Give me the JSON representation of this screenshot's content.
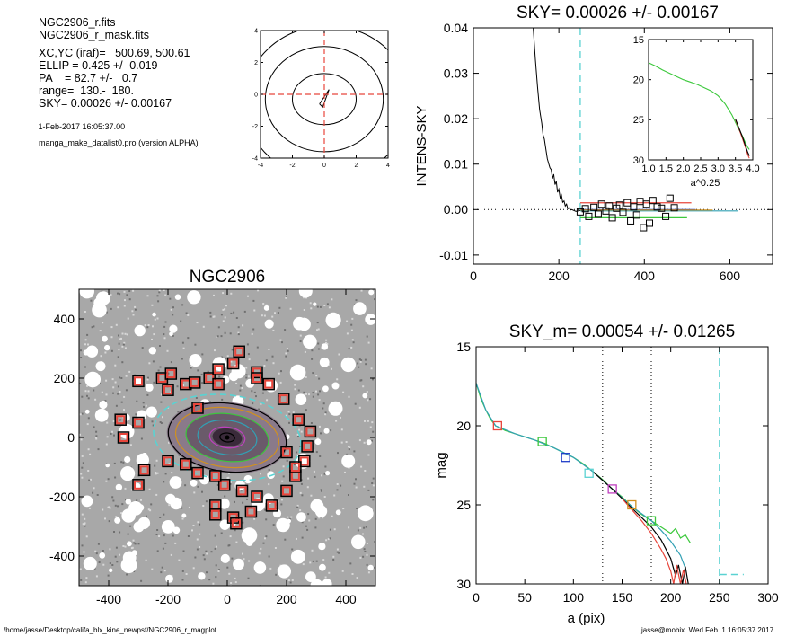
{
  "info": {
    "lines": [
      "NGC2906_r.fits",
      "NGC2906_r_mask.fits",
      "XC,YC (iraf)=   500.69, 500.61",
      "ELLIP = 0.425 +/- 0.019",
      "PA    = 82.7 +/-   0.7",
      "range=  130.-  180.",
      "SKY= 0.00026 +/- 0.00167"
    ],
    "date_line": " 1-Feb-2017 16:05:37.00",
    "program_line": "manga_make_datalist0.pro (version ALPHA)"
  },
  "footer": {
    "left": "/home/jasse/Desktop/califa_blx_kine_newpsf/NGC2906_r_magplot",
    "right": "jasse@mobix  Wed Feb  1 16:05:37 2017"
  },
  "colors": {
    "red": "#e8463c",
    "green": "#3cc83c",
    "cyan": "#5ad2d2",
    "blue": "#1e3cc8",
    "magenta": "#c040c0",
    "teal": "#32a0b4",
    "orange": "#d09020",
    "gray": "#9a9a9a"
  },
  "chart_data": [
    {
      "id": "contour",
      "type": "contour",
      "xlim": [
        -4,
        4
      ],
      "ylim": [
        -4,
        4
      ],
      "xticks": [
        "-4",
        "-2",
        "0",
        "2",
        "4"
      ],
      "yticks": [
        "-4",
        "-2",
        "0",
        "2",
        "4"
      ],
      "crosshair": {
        "x": 0,
        "y": 0,
        "color": "red"
      },
      "levels": [
        {
          "rx": 2.0,
          "ry": 1.6,
          "cx": 0,
          "cy": -0.3
        },
        {
          "rx": 3.7,
          "ry": 3.3,
          "cx": 0,
          "cy": -0.3
        },
        {
          "rx": 5.2,
          "ry": 4.8,
          "cx": 0.2,
          "cy": -0.5
        }
      ]
    },
    {
      "id": "sky",
      "type": "line",
      "title": "SKY= 0.00026 +/- 0.00167",
      "xlabel": "",
      "ylabel": "INTENS-SKY",
      "xlim": [
        0,
        700
      ],
      "ylim": [
        -0.012,
        0.04
      ],
      "xticks": [
        0,
        200,
        400,
        600
      ],
      "yticks": [
        -0.01,
        0.0,
        0.01,
        0.02,
        0.03,
        0.04
      ],
      "ytick_labels": [
        "-0.01",
        "0.00",
        "0.01",
        "0.02",
        "0.03",
        "0.04"
      ],
      "zero_line": 0,
      "vline": {
        "x": 250,
        "color": "cyan"
      },
      "profile": {
        "x": [
          140,
          145,
          150,
          155,
          160,
          163,
          166,
          170,
          173,
          176,
          179,
          182,
          185,
          188,
          191,
          194,
          197,
          200,
          203,
          206,
          209,
          212,
          215,
          218,
          221,
          224,
          227,
          230,
          240,
          250,
          260
        ],
        "y": [
          0.04,
          0.033,
          0.027,
          0.022,
          0.019,
          0.0165,
          0.0155,
          0.013,
          0.0112,
          0.0102,
          0.0092,
          0.0088,
          0.0068,
          0.0078,
          0.0055,
          0.0062,
          0.0038,
          0.0045,
          0.0026,
          0.0032,
          0.0016,
          0.0019,
          0.0008,
          0.0012,
          0.0002,
          0.0004,
          -0.0001,
          0.0,
          -0.0004,
          -0.0002,
          -0.0003
        ]
      },
      "sky_points": {
        "x": [
          250,
          262,
          270,
          282,
          292,
          300,
          310,
          318,
          325,
          335,
          342,
          350,
          360,
          368,
          375,
          382,
          390,
          398,
          405,
          412,
          420,
          430,
          440,
          450,
          460,
          470
        ],
        "y": [
          -0.0005,
          0.0002,
          -0.0015,
          0.0005,
          -0.001,
          0.0012,
          -0.0003,
          0.0008,
          -0.0018,
          0.0003,
          0.001,
          -0.0006,
          0.0015,
          -0.0025,
          0.0006,
          -0.0012,
          0.0018,
          -0.004,
          0.0012,
          -0.003,
          0.002,
          0.0006,
          0.0003,
          -0.0015,
          0.0025,
          0.0004
        ]
      },
      "hlines": [
        {
          "x": [
            250,
            510
          ],
          "y": 0.0015,
          "color": "red"
        },
        {
          "x": [
            250,
            620
          ],
          "y": -0.0003,
          "color": "teal"
        },
        {
          "x": [
            250,
            500
          ],
          "y": -0.0018,
          "color": "green"
        },
        {
          "x": [
            250,
            520
          ],
          "y": 0.0,
          "color": "blue"
        },
        {
          "x": [
            250,
            560
          ],
          "y": -0.0001,
          "color": "orange"
        }
      ],
      "inset": {
        "xlabel": "a^0.25",
        "xlim": [
          1.0,
          4.0
        ],
        "ylim": [
          30,
          15
        ],
        "xticks": [
          1.0,
          1.5,
          2.0,
          2.5,
          3.0,
          3.5,
          4.0
        ],
        "xtick_labels": [
          "1.0",
          "1.5",
          "2.0",
          "2.5",
          "3.0",
          "3.5",
          "4.0"
        ],
        "yticks": [
          15,
          20,
          25,
          30
        ],
        "series": [
          {
            "color": "green",
            "x": [
              1.0,
              1.2,
              1.4,
              1.6,
              1.8,
              2.0,
              2.2,
              2.4,
              2.6,
              2.8,
              3.0,
              3.2,
              3.4,
              3.6,
              3.7,
              3.8,
              3.85,
              3.9
            ],
            "y": [
              17.9,
              18.3,
              18.8,
              19.2,
              19.6,
              20.0,
              20.3,
              20.6,
              21.0,
              21.4,
              22.0,
              23.0,
              24.4,
              26.2,
              27.0,
              28.0,
              28.4,
              28.7
            ]
          },
          {
            "color": "red",
            "x": [
              3.5,
              3.6,
              3.7,
              3.8,
              3.85,
              3.9
            ],
            "y": [
              25.0,
              26.1,
              27.3,
              28.6,
              29.3,
              29.8
            ]
          },
          {
            "color": "black",
            "x": [
              3.5,
              3.6,
              3.7,
              3.8,
              3.85,
              3.9
            ],
            "y": [
              24.9,
              26.0,
              27.1,
              28.4,
              29.0,
              29.5
            ]
          }
        ]
      }
    },
    {
      "id": "galaxy",
      "type": "image",
      "title": "NGC2906",
      "xlim": [
        -500,
        500
      ],
      "ylim": [
        -500,
        500
      ],
      "xticks": [
        -400,
        -200,
        0,
        200,
        400
      ],
      "yticks": [
        -400,
        -200,
        0,
        200,
        400
      ],
      "ellipse": {
        "a": 250,
        "b": 143,
        "pa": 82.7,
        "color": "cyan"
      },
      "isophotes": [
        {
          "a": 200,
          "b": 115,
          "color": "black"
        },
        {
          "a": 175,
          "b": 100,
          "color": "orange"
        },
        {
          "a": 140,
          "b": 80,
          "color": "green"
        },
        {
          "a": 100,
          "b": 58,
          "color": "teal"
        },
        {
          "a": 60,
          "b": 35,
          "color": "magenta"
        },
        {
          "a": 25,
          "b": 15,
          "color": "black"
        }
      ],
      "sky_boxes": {
        "x": [
          -300,
          -220,
          -190,
          -140,
          -110,
          -60,
          -30,
          40,
          100,
          140,
          190,
          240,
          270,
          280,
          260,
          230,
          200,
          150,
          100,
          50,
          -10,
          -40,
          -100,
          -140,
          -200,
          -280,
          -300,
          -360,
          -350,
          -300,
          -200,
          -100,
          -40,
          20,
          80,
          -30,
          200,
          230,
          30,
          20,
          -40,
          100
        ],
        "y": [
          190,
          200,
          215,
          180,
          185,
          200,
          230,
          290,
          220,
          180,
          130,
          60,
          -30,
          20,
          -80,
          -130,
          -180,
          -230,
          -200,
          -180,
          -160,
          -130,
          -120,
          -90,
          -80,
          -110,
          -160,
          60,
          0,
          50,
          160,
          100,
          -230,
          -270,
          -250,
          180,
          -50,
          -100,
          -290,
          250,
          -260,
          200
        ]
      }
    },
    {
      "id": "mag",
      "type": "line",
      "title": "SKY_m=  0.00054 +/- 0.01265",
      "xlabel": "a (pix)",
      "ylabel": "mag",
      "xlim": [
        0,
        300
      ],
      "ylim": [
        30,
        15
      ],
      "xticks": [
        0,
        50,
        100,
        150,
        200,
        250,
        300
      ],
      "yticks": [
        15,
        20,
        25,
        30
      ],
      "vlines": [
        {
          "x": 130,
          "style": "dotted",
          "color": "black"
        },
        {
          "x": 180,
          "style": "dotted",
          "color": "black"
        },
        {
          "x": 250,
          "style": "dashed",
          "color": "cyan"
        }
      ],
      "sky_segment": {
        "x": [
          250,
          275
        ],
        "y": 29.4,
        "color": "cyan"
      },
      "series": [
        {
          "color": "green",
          "x": [
            0,
            5,
            10,
            15,
            20,
            30,
            40,
            50,
            60,
            70,
            80,
            90,
            100,
            110,
            120,
            130,
            140,
            150,
            160,
            170,
            180,
            190,
            200,
            205,
            210,
            215,
            220
          ],
          "y": [
            17.3,
            18.3,
            19.0,
            19.6,
            20.0,
            20.3,
            20.5,
            20.7,
            20.9,
            21.1,
            21.4,
            21.7,
            22.0,
            22.4,
            22.9,
            23.4,
            24.0,
            24.5,
            25.1,
            25.6,
            26.0,
            26.4,
            26.8,
            26.5,
            27.1,
            26.9,
            27.4
          ]
        },
        {
          "color": "teal",
          "x": [
            0,
            10,
            20,
            40,
            60,
            80,
            100,
            120,
            140,
            160,
            180,
            190,
            200,
            210,
            215
          ],
          "y": [
            17.3,
            19.0,
            20.0,
            20.5,
            20.9,
            21.4,
            22.0,
            22.9,
            24.0,
            25.1,
            26.0,
            26.6,
            27.3,
            28.2,
            29.0
          ]
        },
        {
          "color": "black",
          "x": [
            120,
            140,
            160,
            170,
            180,
            190,
            195,
            200,
            205,
            208,
            212,
            215,
            218
          ],
          "y": [
            22.9,
            24.0,
            25.2,
            25.8,
            26.4,
            27.2,
            27.8,
            28.4,
            29.5,
            28.8,
            30.0,
            28.9,
            30.0
          ]
        },
        {
          "color": "red",
          "x": [
            150,
            160,
            170,
            180,
            190,
            195,
            200,
            203,
            206,
            210,
            213,
            216
          ],
          "y": [
            24.6,
            25.3,
            26.0,
            26.8,
            27.8,
            28.4,
            29.2,
            30.0,
            28.8,
            30.0,
            29.1,
            30.0
          ]
        }
      ],
      "markers": [
        {
          "x": 22,
          "y": 20.0,
          "color": "red"
        },
        {
          "x": 68,
          "y": 21.0,
          "color": "green"
        },
        {
          "x": 92,
          "y": 22.0,
          "color": "blue"
        },
        {
          "x": 116,
          "y": 23.0,
          "color": "cyan"
        },
        {
          "x": 140,
          "y": 24.0,
          "color": "magenta"
        },
        {
          "x": 160,
          "y": 25.0,
          "color": "orange"
        },
        {
          "x": 180,
          "y": 26.0,
          "color": "green"
        }
      ]
    }
  ]
}
